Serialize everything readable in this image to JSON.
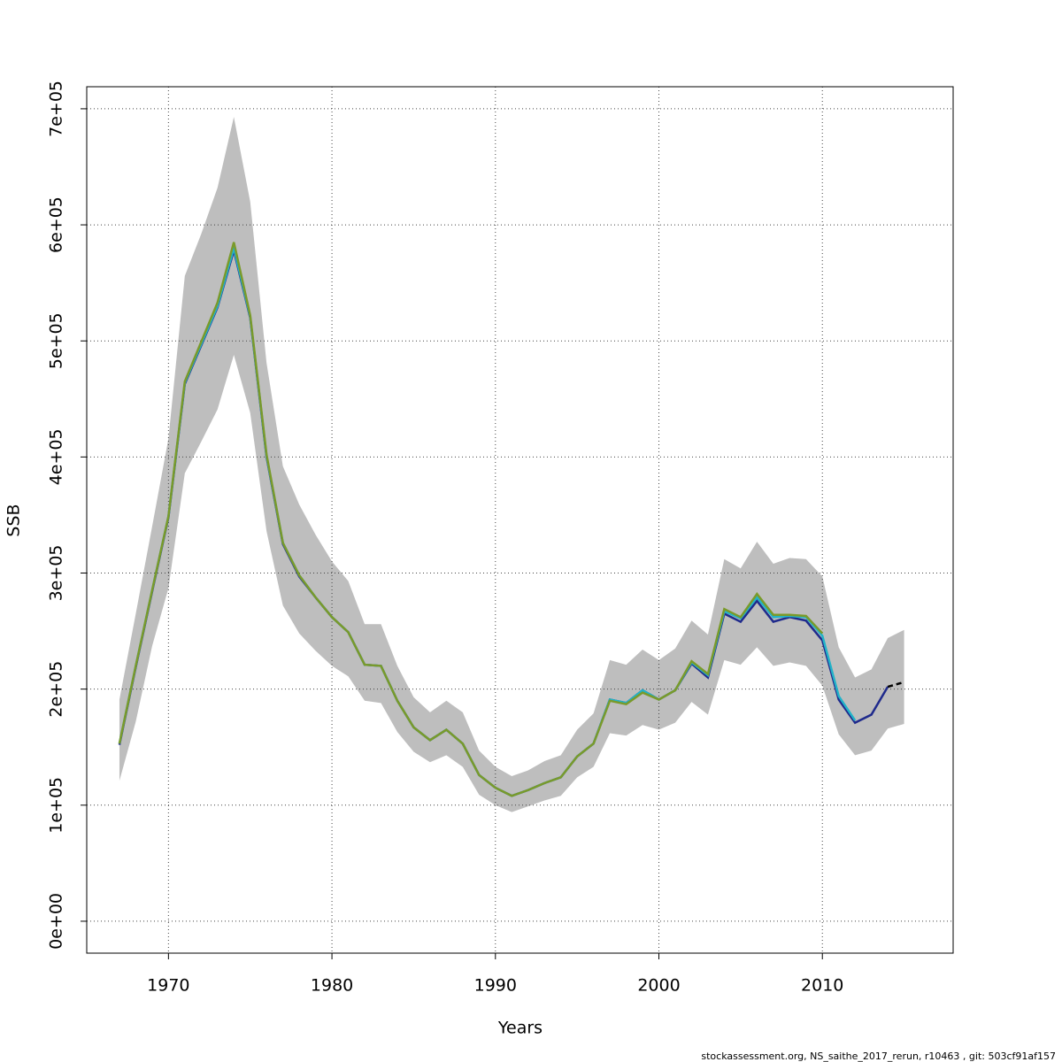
{
  "chart_data": {
    "type": "line",
    "xlabel": "Years",
    "ylabel": "SSB",
    "caption": "stockassessment.org, NS_saithe_2017_rerun, r10463 , git: 503cf91af157",
    "x": [
      1967,
      1968,
      1969,
      1970,
      1971,
      1972,
      1973,
      1974,
      1975,
      1976,
      1977,
      1978,
      1979,
      1980,
      1981,
      1982,
      1983,
      1984,
      1985,
      1986,
      1987,
      1988,
      1989,
      1990,
      1991,
      1992,
      1993,
      1994,
      1995,
      1996,
      1997,
      1998,
      1999,
      2000,
      2001,
      2002,
      2003,
      2004,
      2005,
      2006,
      2007,
      2008,
      2009,
      2010,
      2011,
      2012,
      2013,
      2014,
      2015
    ],
    "band": {
      "color": "#bebebe",
      "upper": [
        191000,
        265000,
        340000,
        416000,
        556000,
        592000,
        632000,
        693000,
        620000,
        481000,
        392000,
        359000,
        333000,
        310000,
        293000,
        256000,
        256000,
        220000,
        193000,
        180000,
        190000,
        180000,
        147000,
        133000,
        125000,
        130000,
        138000,
        143000,
        165000,
        179000,
        225000,
        221000,
        234000,
        225000,
        235000,
        259000,
        247000,
        312000,
        304000,
        327000,
        308000,
        313000,
        312000,
        297000,
        236000,
        210000,
        217000,
        244000,
        251000
      ],
      "lower": [
        121000,
        172000,
        237000,
        287000,
        386000,
        413000,
        441000,
        488000,
        438000,
        336000,
        272000,
        248000,
        233000,
        220000,
        211000,
        190000,
        188000,
        163000,
        146000,
        137000,
        143000,
        133000,
        109000,
        100000,
        94000,
        99000,
        104000,
        108000,
        124000,
        133000,
        162000,
        160000,
        169000,
        165000,
        171000,
        189000,
        178000,
        225000,
        221000,
        236000,
        220000,
        223000,
        220000,
        203000,
        161000,
        143000,
        147000,
        166000,
        170000
      ]
    },
    "series": [
      {
        "color": "#1f2a8c",
        "dash": false,
        "values": [
          152000,
          219000,
          284000,
          348000,
          463000,
          496000,
          529000,
          578000,
          520000,
          400000,
          325000,
          297000,
          279000,
          262000,
          249000,
          221000,
          220000,
          190000,
          167000,
          156000,
          165000,
          153000,
          126000,
          115000,
          108000,
          113000,
          119000,
          124000,
          142000,
          153000,
          191000,
          188000,
          199000,
          191000,
          199000,
          222000,
          210000,
          265000,
          258000,
          276000,
          258000,
          262000,
          259000,
          242000,
          191000,
          171000,
          178000,
          202000,
          null
        ]
      },
      {
        "color": "#22b3c8",
        "dash": false,
        "values": [
          153000,
          220000,
          285000,
          349000,
          464000,
          497000,
          530000,
          580000,
          521000,
          401000,
          326000,
          298000,
          279000,
          262000,
          249000,
          221000,
          220000,
          190000,
          167000,
          156000,
          165000,
          153000,
          126000,
          115000,
          108000,
          113000,
          119000,
          124000,
          142000,
          153000,
          191000,
          188000,
          199000,
          191000,
          199000,
          223000,
          212000,
          267000,
          261000,
          279000,
          262000,
          263000,
          262000,
          246000,
          194000,
          173000,
          null,
          null,
          null
        ]
      },
      {
        "color": "#7a9a2a",
        "dash": false,
        "values": [
          153000,
          220000,
          285000,
          349000,
          465000,
          499000,
          533000,
          585000,
          522000,
          402000,
          326000,
          298000,
          279000,
          262000,
          249000,
          221000,
          220000,
          190000,
          167000,
          156000,
          165000,
          153000,
          126000,
          115000,
          108000,
          113000,
          119000,
          124000,
          142000,
          153000,
          190000,
          187000,
          197000,
          191000,
          199000,
          224000,
          213000,
          269000,
          262000,
          282000,
          264000,
          264000,
          263000,
          248000,
          null,
          null,
          null,
          null,
          null
        ]
      },
      {
        "color": "#000000",
        "dash": true,
        "values": [
          null,
          null,
          null,
          null,
          null,
          null,
          null,
          null,
          null,
          null,
          null,
          null,
          null,
          null,
          null,
          null,
          null,
          null,
          null,
          null,
          null,
          null,
          null,
          null,
          null,
          null,
          null,
          null,
          null,
          null,
          null,
          null,
          null,
          null,
          null,
          null,
          null,
          null,
          null,
          null,
          null,
          null,
          null,
          null,
          null,
          null,
          null,
          202000,
          206000
        ]
      }
    ],
    "xlim": [
      1965,
      2018
    ],
    "ylim": [
      -27500,
      719000
    ],
    "xticks": [
      1970,
      1980,
      1990,
      2000,
      2010
    ],
    "yticks": [
      {
        "value": 0,
        "label": "0e+00"
      },
      {
        "value": 100000,
        "label": "1e+05"
      },
      {
        "value": 200000,
        "label": "2e+05"
      },
      {
        "value": 300000,
        "label": "3e+05"
      },
      {
        "value": 400000,
        "label": "4e+05"
      },
      {
        "value": 500000,
        "label": "5e+05"
      },
      {
        "value": 600000,
        "label": "6e+05"
      },
      {
        "value": 700000,
        "label": "7e+05"
      }
    ],
    "grid": true
  }
}
